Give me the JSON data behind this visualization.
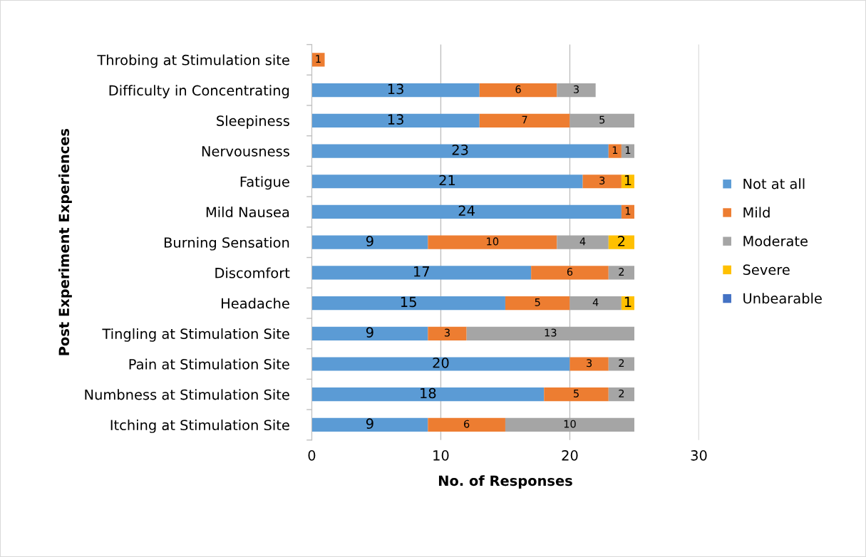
{
  "chart_data": {
    "type": "bar",
    "orientation": "horizontal",
    "stacked": true,
    "xlabel": "No. of Responses",
    "ylabel": "Post Experiment Experiences",
    "categories": [
      "Throbing at Stimulation site",
      "Difficulty in Concentrating",
      "Sleepiness",
      "Nervousness",
      "Fatigue",
      "Mild Nausea",
      "Burning Sensation",
      "Discomfort",
      "Headache",
      "Tingling at Stimulation Site",
      "Pain at Stimulation Site",
      "Numbness at Stimulation Site",
      "Itching at Stimulation Site"
    ],
    "series": [
      {
        "name": "Not at all",
        "color": "#5b9bd5",
        "values": [
          null,
          13,
          13,
          23,
          21,
          24,
          9,
          17,
          15,
          9,
          20,
          18,
          9
        ]
      },
      {
        "name": "Mild",
        "color": "#ed7d31",
        "values": [
          1,
          6,
          7,
          1,
          3,
          1,
          10,
          6,
          5,
          3,
          3,
          5,
          6
        ]
      },
      {
        "name": "Moderate",
        "color": "#a5a5a5",
        "values": [
          null,
          3,
          5,
          1,
          null,
          null,
          4,
          2,
          4,
          13,
          2,
          2,
          10
        ]
      },
      {
        "name": "Severe",
        "color": "#ffc000",
        "values": [
          null,
          null,
          null,
          null,
          1,
          null,
          2,
          null,
          1,
          null,
          null,
          null,
          null
        ]
      },
      {
        "name": "Unbearable",
        "color": "#4472c4",
        "values": [
          null,
          null,
          null,
          null,
          null,
          null,
          null,
          null,
          null,
          null,
          null,
          null,
          null
        ]
      }
    ],
    "xlim": [
      0,
      30
    ],
    "xticks": [
      0,
      10,
      20,
      30
    ],
    "grid": "x",
    "legend": "right",
    "data_labels": true
  }
}
